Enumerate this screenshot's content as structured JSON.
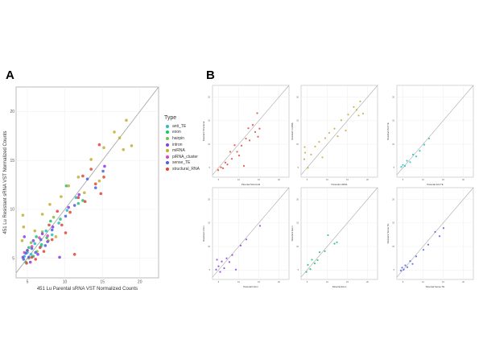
{
  "panels": {
    "a": "A",
    "b": "B"
  },
  "chart_data": [
    {
      "type": "scatter",
      "panel": "A",
      "xlabel": "451 Lu Parental sRNA VST Normalized Counts",
      "ylabel": "451 Lu Resistant sRNA VST Normalized Counts",
      "xlim": [
        3.5,
        22.5
      ],
      "ylim": [
        3.0,
        22.5
      ],
      "xticks": [
        5,
        10,
        15,
        20
      ],
      "yticks": [
        5,
        10,
        15,
        20
      ],
      "grid": true,
      "reference_line": "y = x",
      "legend": {
        "title": "Type",
        "placement": "right"
      },
      "series": [
        {
          "name": "anti_TE",
          "color": "#22C0C8",
          "points": [
            [
              4.6,
              5.2
            ],
            [
              5,
              5.6
            ],
            [
              5.5,
              5.4
            ],
            [
              6,
              6.5
            ],
            [
              6.8,
              6.2
            ],
            [
              7.5,
              7.8
            ],
            [
              8.3,
              7.4
            ],
            [
              9.2,
              8.6
            ],
            [
              10.3,
              9.9
            ],
            [
              11.5,
              11.2
            ]
          ]
        },
        {
          "name": "exon",
          "color": "#20C070",
          "points": [
            [
              4.8,
              4.6
            ],
            [
              5.2,
              6.1
            ],
            [
              5.8,
              5.2
            ],
            [
              6.2,
              7.2
            ],
            [
              6.9,
              6.4
            ],
            [
              7.6,
              7.1
            ],
            [
              8.1,
              8.8
            ],
            [
              9.4,
              9
            ],
            [
              10.2,
              12.4
            ],
            [
              11.8,
              10.6
            ],
            [
              12.4,
              10.9
            ]
          ]
        },
        {
          "name": "hairpin",
          "color": "#80C040",
          "points": [
            [
              5,
              5.8
            ],
            [
              5.5,
              6.6
            ],
            [
              6.3,
              5.7
            ],
            [
              7,
              7.7
            ],
            [
              7.8,
              6.8
            ],
            [
              8.5,
              9.2
            ]
          ]
        },
        {
          "name": "intron",
          "color": "#8A3CE0",
          "points": [
            [
              4.4,
              5.1
            ],
            [
              4.6,
              7.2
            ],
            [
              5,
              5.8
            ],
            [
              5.4,
              4.6
            ],
            [
              5.8,
              6.8
            ],
            [
              6.4,
              5.4
            ],
            [
              7,
              7.5
            ],
            [
              7.7,
              6.7
            ],
            [
              8.4,
              8.2
            ],
            [
              9.3,
              5.1
            ],
            [
              10.5,
              10.2
            ],
            [
              11.9,
              11.5
            ],
            [
              15.3,
              14.4
            ]
          ]
        },
        {
          "name": "miRNA",
          "color": "#C8AC30",
          "points": [
            [
              4.4,
              9.4
            ],
            [
              4.5,
              8.2
            ],
            [
              4.3,
              6.8
            ],
            [
              5.2,
              5
            ],
            [
              6,
              7.8
            ],
            [
              7,
              9.5
            ],
            [
              8,
              10.5
            ],
            [
              8.8,
              7.2
            ],
            [
              9.5,
              11.3
            ],
            [
              10.5,
              12.4
            ],
            [
              11.8,
              13.3
            ],
            [
              12.6,
              11.7
            ],
            [
              13.5,
              15.1
            ],
            [
              14.6,
              12.9
            ],
            [
              15.2,
              16.3
            ],
            [
              16.6,
              17.9
            ],
            [
              17.3,
              17.3
            ],
            [
              18.2,
              19.1
            ],
            [
              18.9,
              16.5
            ],
            [
              17.8,
              16.1
            ]
          ]
        },
        {
          "name": "piRNA_cluster",
          "color": "#E040C0",
          "points": [
            [
              4.6,
              5.6
            ],
            [
              5.6,
              6.2
            ],
            [
              6.6,
              7.1
            ],
            [
              7.7,
              7.3
            ]
          ]
        },
        {
          "name": "sense_TE",
          "color": "#4A62E0",
          "points": [
            [
              4.5,
              4.9
            ],
            [
              4.8,
              5.5
            ],
            [
              5.2,
              5.1
            ],
            [
              5.6,
              6
            ],
            [
              6.1,
              5.6
            ],
            [
              6.8,
              6.9
            ],
            [
              7.4,
              6.3
            ],
            [
              8.3,
              7.9
            ],
            [
              10.1,
              9.3
            ],
            [
              11.3,
              10.4
            ],
            [
              13,
              13.1
            ],
            [
              14.1,
              12.2
            ],
            [
              15.1,
              13.9
            ]
          ]
        },
        {
          "name": "structural_RNA",
          "color": "#E04535",
          "points": [
            [
              4.9,
              4.5
            ],
            [
              5.6,
              5.1
            ],
            [
              6.1,
              4.9
            ],
            [
              6.7,
              6.1
            ],
            [
              7.2,
              5.7
            ],
            [
              7.9,
              8.4
            ],
            [
              8.3,
              6.9
            ],
            [
              9,
              9.8
            ],
            [
              9.6,
              8.4
            ],
            [
              10.1,
              7.6
            ],
            [
              10.7,
              9.7
            ],
            [
              11.3,
              5.4
            ],
            [
              11.8,
              11.2
            ],
            [
              12.4,
              13.4
            ],
            [
              12.7,
              10.8
            ],
            [
              13.5,
              14.1
            ],
            [
              14.1,
              12.6
            ],
            [
              14.6,
              16.6
            ],
            [
              15.2,
              13.3
            ],
            [
              14.8,
              11.6
            ]
          ]
        }
      ]
    },
    {
      "type": "scatter",
      "panel": "B",
      "grid": true,
      "xticks": [
        5,
        10,
        15,
        20
      ],
      "yticks": [
        5,
        10,
        15,
        20
      ],
      "subplots": [
        {
          "series": "structural_RNA",
          "xlabel": "Parental Structural",
          "ylabel": "Resistant Structural"
        },
        {
          "series": "miRNA",
          "xlabel": "Parental miRNA",
          "ylabel": "Resistant miRNA"
        },
        {
          "series": "anti_TE",
          "xlabel": "Parental Anti TE",
          "ylabel": "Resistant Anti TE"
        },
        {
          "series": "intron",
          "xlabel": "Parental Intron",
          "ylabel": "Resistant Intron"
        },
        {
          "series": "exon",
          "xlabel": "Parental Exon",
          "ylabel": "Resistant Exon"
        },
        {
          "series": "sense_TE",
          "xlabel": "Parental Sense TE",
          "ylabel": "Resistant Sense TE"
        }
      ]
    }
  ]
}
